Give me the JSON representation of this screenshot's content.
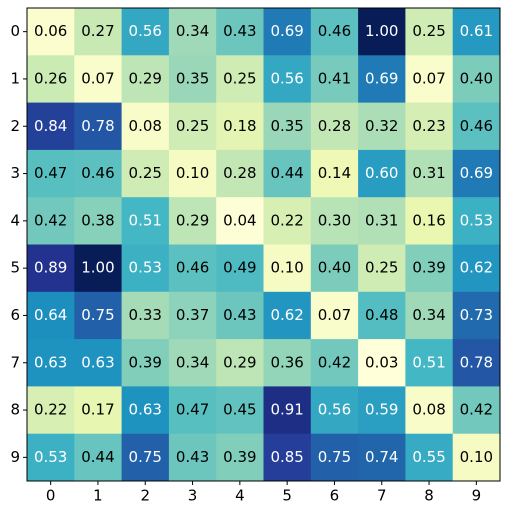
{
  "chart_data": {
    "type": "heatmap",
    "x": [
      0,
      1,
      2,
      3,
      4,
      5,
      6,
      7,
      8,
      9
    ],
    "y": [
      0,
      1,
      2,
      3,
      4,
      5,
      6,
      7,
      8,
      9
    ],
    "colormap": [
      "#ffffd9",
      "#edf8b1",
      "#c7e9b4",
      "#7fcdbb",
      "#41b6c4",
      "#1d91c0",
      "#225ea8",
      "#253494",
      "#081d58"
    ],
    "values": [
      [
        0.06,
        0.27,
        0.56,
        0.34,
        0.43,
        0.69,
        0.46,
        1.0,
        0.25,
        0.61
      ],
      [
        0.26,
        0.07,
        0.29,
        0.35,
        0.25,
        0.56,
        0.41,
        0.69,
        0.07,
        0.4
      ],
      [
        0.84,
        0.78,
        0.08,
        0.25,
        0.18,
        0.35,
        0.28,
        0.32,
        0.23,
        0.46
      ],
      [
        0.47,
        0.46,
        0.25,
        0.1,
        0.28,
        0.44,
        0.14,
        0.6,
        0.31,
        0.69
      ],
      [
        0.42,
        0.38,
        0.51,
        0.29,
        0.04,
        0.22,
        0.3,
        0.31,
        0.16,
        0.53
      ],
      [
        0.89,
        1.0,
        0.53,
        0.46,
        0.49,
        0.1,
        0.4,
        0.25,
        0.39,
        0.62
      ],
      [
        0.64,
        0.75,
        0.33,
        0.37,
        0.43,
        0.62,
        0.07,
        0.48,
        0.34,
        0.73
      ],
      [
        0.63,
        0.63,
        0.39,
        0.34,
        0.29,
        0.36,
        0.42,
        0.03,
        0.51,
        0.78
      ],
      [
        0.22,
        0.17,
        0.63,
        0.47,
        0.45,
        0.91,
        0.56,
        0.59,
        0.08,
        0.42
      ],
      [
        0.53,
        0.44,
        0.75,
        0.43,
        0.39,
        0.85,
        0.75,
        0.74,
        0.55,
        0.1
      ]
    ],
    "value_labels": [
      [
        "0.06",
        "0.27",
        "0.56",
        "0.34",
        "0.43",
        "0.69",
        "0.46",
        "1.00",
        "0.25",
        "0.61"
      ],
      [
        "0.26",
        "0.07",
        "0.29",
        "0.35",
        "0.25",
        "0.56",
        "0.41",
        "0.69",
        "0.07",
        "0.40"
      ],
      [
        "0.84",
        "0.78",
        "0.08",
        "0.25",
        "0.18",
        "0.35",
        "0.28",
        "0.32",
        "0.23",
        "0.46"
      ],
      [
        "0.47",
        "0.46",
        "0.25",
        "0.10",
        "0.28",
        "0.44",
        "0.14",
        "0.60",
        "0.31",
        "0.69"
      ],
      [
        "0.42",
        "0.38",
        "0.51",
        "0.29",
        "0.04",
        "0.22",
        "0.30",
        "0.31",
        "0.16",
        "0.53"
      ],
      [
        "0.89",
        "1.00",
        "0.53",
        "0.46",
        "0.49",
        "0.10",
        "0.40",
        "0.25",
        "0.39",
        "0.62"
      ],
      [
        "0.64",
        "0.75",
        "0.33",
        "0.37",
        "0.43",
        "0.62",
        "0.07",
        "0.48",
        "0.34",
        "0.73"
      ],
      [
        "0.63",
        "0.63",
        "0.39",
        "0.34",
        "0.29",
        "0.36",
        "0.42",
        "0.03",
        "0.51",
        "0.78"
      ],
      [
        "0.22",
        "0.17",
        "0.63",
        "0.47",
        "0.45",
        "0.91",
        "0.56",
        "0.59",
        "0.08",
        "0.42"
      ],
      [
        "0.53",
        "0.44",
        "0.75",
        "0.43",
        "0.39",
        "0.85",
        "0.75",
        "0.74",
        "0.55",
        "0.10"
      ]
    ]
  }
}
